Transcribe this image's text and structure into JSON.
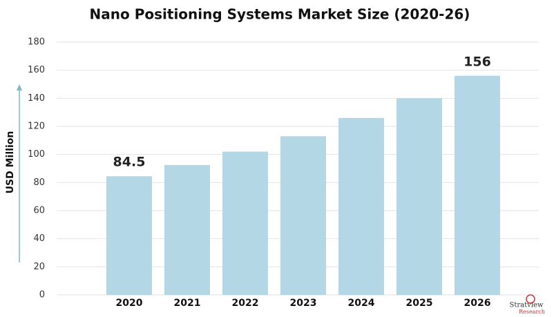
{
  "chart_data": {
    "type": "bar",
    "title": "Nano Positioning Systems Market Size (2020-26)",
    "y_label": "USD Million",
    "categories": [
      "2020",
      "2021",
      "2022",
      "2023",
      "2024",
      "2025",
      "2026"
    ],
    "values": [
      84.5,
      92.5,
      102,
      113,
      126,
      140,
      156
    ],
    "value_labels": [
      "84.5",
      null,
      null,
      null,
      null,
      null,
      "156"
    ],
    "color": "#b4d7e6",
    "ylim": [
      0,
      180
    ],
    "yticks": [
      0,
      20,
      40,
      60,
      80,
      100,
      120,
      140,
      160,
      180
    ],
    "grid": true,
    "logo": [
      "Stratview",
      "Research"
    ]
  }
}
